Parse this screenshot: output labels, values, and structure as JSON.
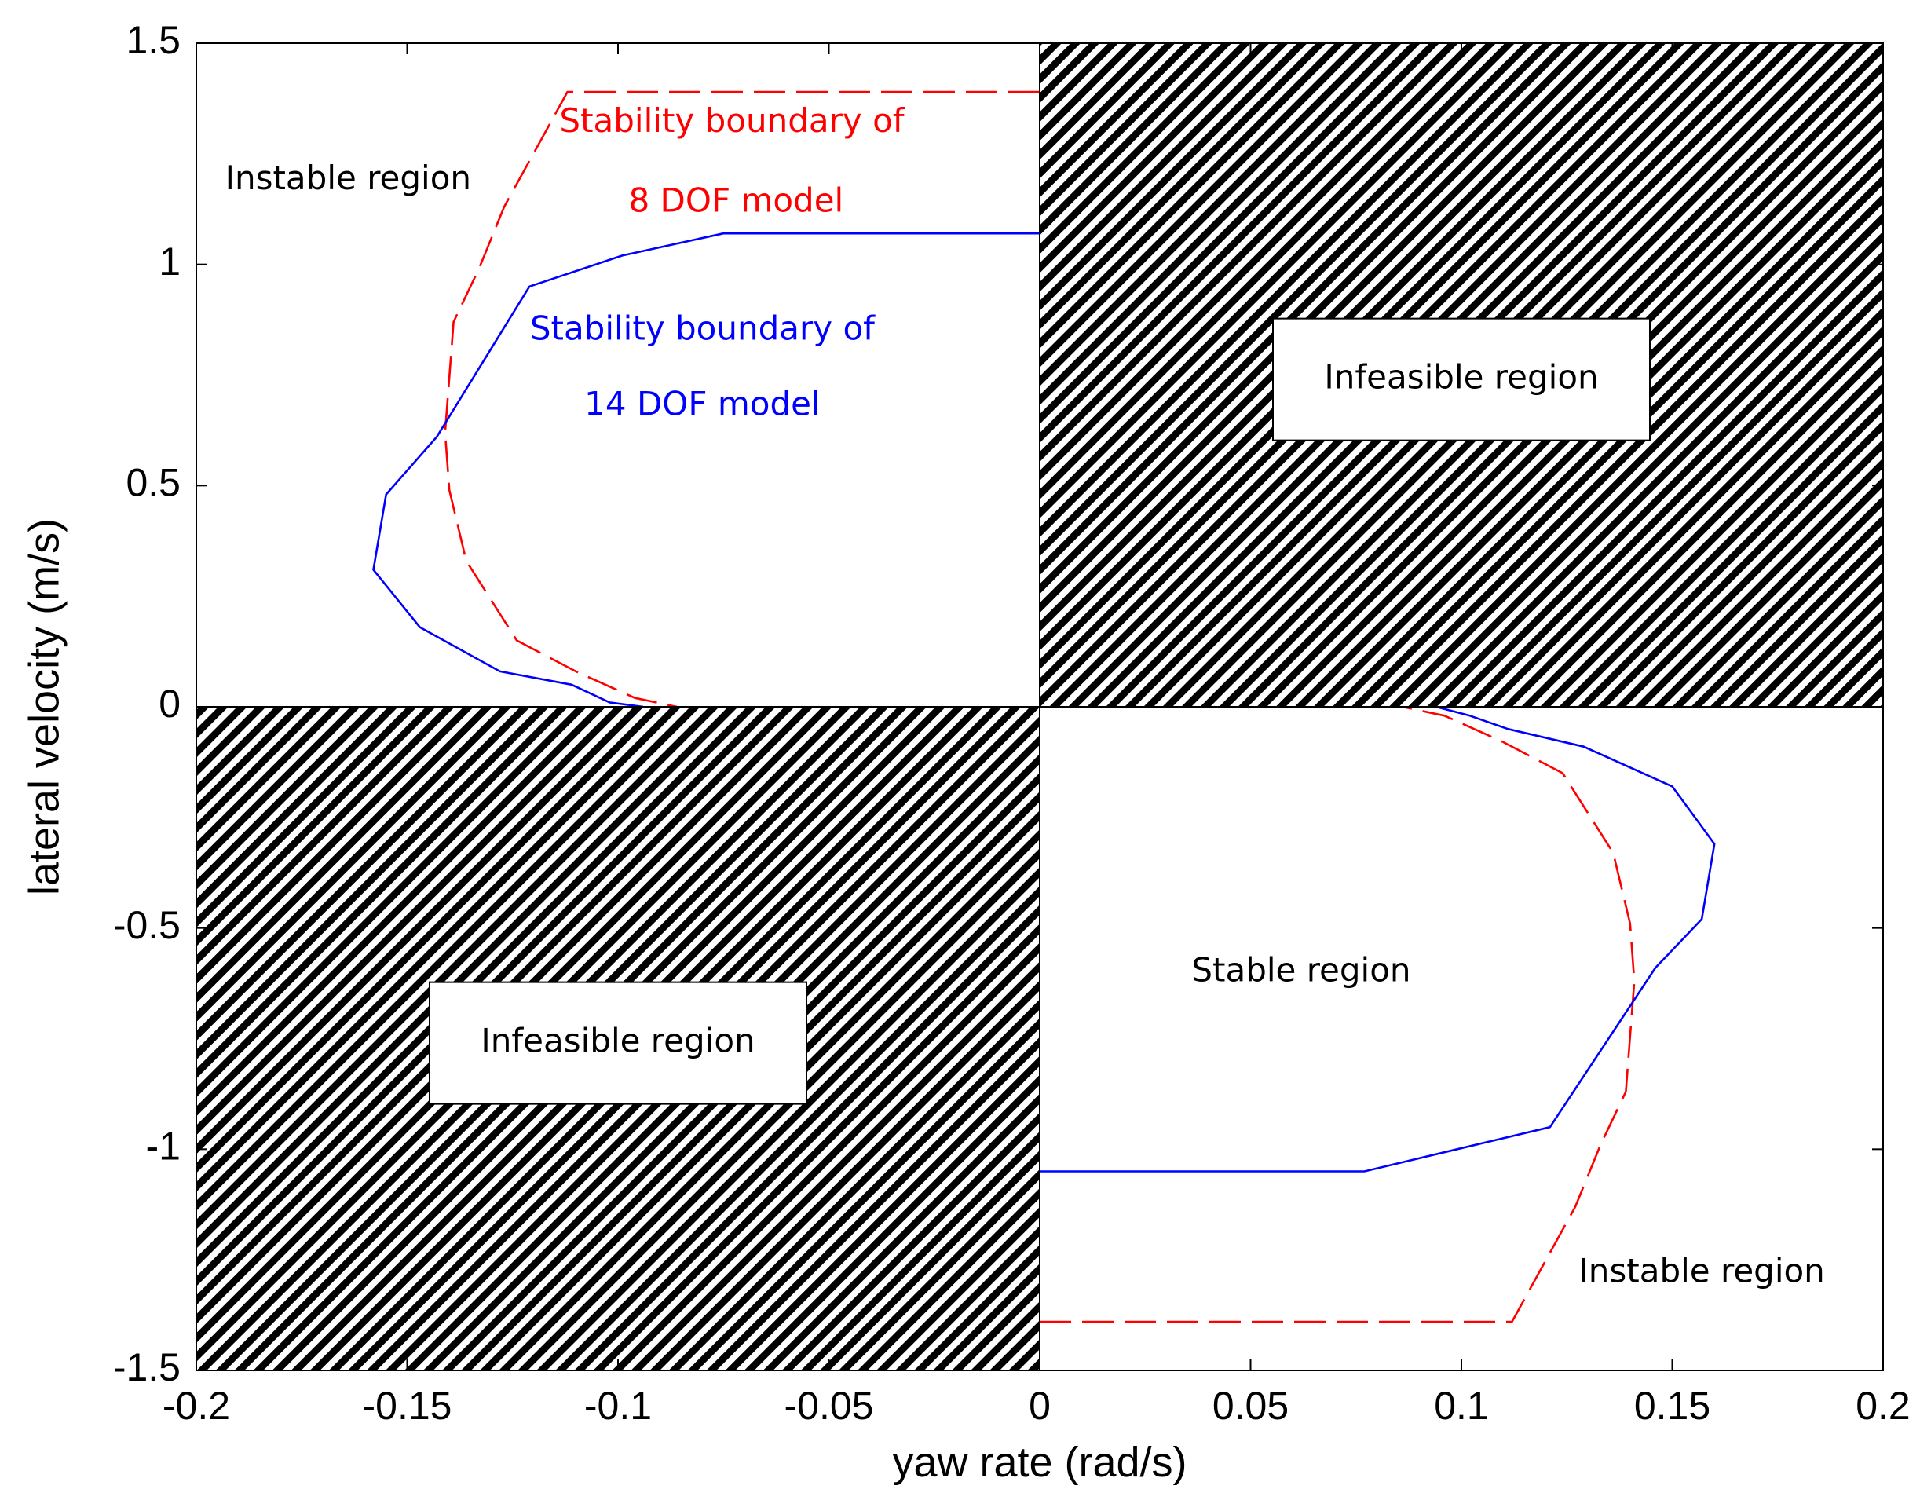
{
  "chart_data": {
    "type": "line",
    "title": "",
    "xlabel": "yaw rate (rad/s)",
    "ylabel": "lateral velocity (m/s)",
    "xlim": [
      -0.2,
      0.2
    ],
    "ylim": [
      -1.5,
      1.5
    ],
    "grid": false,
    "xticks": [
      -0.2,
      -0.15,
      -0.1,
      -0.05,
      0,
      0.05,
      0.1,
      0.15,
      0.2
    ],
    "xtick_labels": [
      "-0.2",
      "-0.15",
      "-0.1",
      "-0.05",
      "0",
      "0.05",
      "0.1",
      "0.15",
      "0.2"
    ],
    "yticks": [
      -1.5,
      -1,
      -0.5,
      0,
      0.5,
      1,
      1.5
    ],
    "ytick_labels": [
      "-1.5",
      "-1",
      "-0.5",
      "0",
      "0.5",
      "1",
      "1.5"
    ],
    "hatched_regions": [
      {
        "name": "infeasible-upper-right",
        "x": [
          0,
          0.2
        ],
        "y": [
          0,
          1.5
        ]
      },
      {
        "name": "infeasible-lower-left",
        "x": [
          -0.2,
          0
        ],
        "y": [
          -1.5,
          0
        ]
      }
    ],
    "series": [
      {
        "name": "Stability boundary of 8 DOF model",
        "color": "#ff0000",
        "style": "dashed",
        "x": [
          0,
          -0.112,
          -0.127,
          -0.133,
          -0.139,
          -0.141,
          -0.14,
          -0.136,
          -0.124,
          -0.11,
          -0.096,
          -0.086
        ],
        "y": [
          1.39,
          1.39,
          1.13,
          0.99,
          0.87,
          0.62,
          0.49,
          0.33,
          0.15,
          0.08,
          0.02,
          0
        ],
        "x2": [
          0,
          0.112,
          0.127,
          0.133,
          0.139,
          0.141,
          0.14,
          0.136,
          0.124,
          0.11,
          0.096,
          0.086
        ],
        "y2": [
          -1.39,
          -1.39,
          -1.13,
          -0.99,
          -0.87,
          -0.62,
          -0.49,
          -0.33,
          -0.15,
          -0.08,
          -0.02,
          0
        ]
      },
      {
        "name": "Stability boundary of 14 DOF model",
        "color": "#0000ff",
        "style": "solid",
        "x": [
          0,
          -0.075,
          -0.099,
          -0.121,
          -0.143,
          -0.155,
          -0.158,
          -0.147,
          -0.128,
          -0.111,
          -0.102,
          -0.094
        ],
        "y": [
          1.07,
          1.07,
          1.02,
          0.95,
          0.61,
          0.48,
          0.31,
          0.18,
          0.08,
          0.05,
          0.01,
          0
        ],
        "x2": [
          0,
          0.077,
          0.099,
          0.121,
          0.146,
          0.157,
          0.16,
          0.15,
          0.129,
          0.111,
          0.102,
          0.094
        ],
        "y2": [
          -1.05,
          -1.05,
          -1.0,
          -0.95,
          -0.59,
          -0.48,
          -0.31,
          -0.18,
          -0.09,
          -0.05,
          -0.02,
          0
        ]
      }
    ],
    "annotations": [
      {
        "name": "instable-region-upper",
        "text": "Instable region",
        "x": -0.164,
        "y": 1.19,
        "color": "#000000",
        "boxed": false
      },
      {
        "name": "boundary-8dof-line1",
        "text": "Stability boundary of",
        "x": -0.073,
        "y": 1.32,
        "color": "#ff0000",
        "boxed": false
      },
      {
        "name": "boundary-8dof-line2",
        "text": "8 DOF model",
        "x": -0.072,
        "y": 1.14,
        "color": "#ff0000",
        "boxed": false
      },
      {
        "name": "boundary-14dof-line1",
        "text": "Stability boundary of",
        "x": -0.08,
        "y": 0.85,
        "color": "#0000ff",
        "boxed": false
      },
      {
        "name": "boundary-14dof-line2",
        "text": "14 DOF model",
        "x": -0.08,
        "y": 0.68,
        "color": "#0000ff",
        "boxed": false
      },
      {
        "name": "infeasible-region-upper",
        "text": "Infeasible region",
        "x": 0.1,
        "y": 0.74,
        "color": "#000000",
        "boxed": true
      },
      {
        "name": "stable-region",
        "text": "Stable region",
        "x": 0.062,
        "y": -0.6,
        "color": "#000000",
        "boxed": false
      },
      {
        "name": "infeasible-region-lower",
        "text": "Infeasible region",
        "x": -0.1,
        "y": -0.76,
        "color": "#000000",
        "boxed": true
      },
      {
        "name": "instable-region-lower",
        "text": "Instable region",
        "x": 0.157,
        "y": -1.28,
        "color": "#000000",
        "boxed": false
      }
    ]
  }
}
